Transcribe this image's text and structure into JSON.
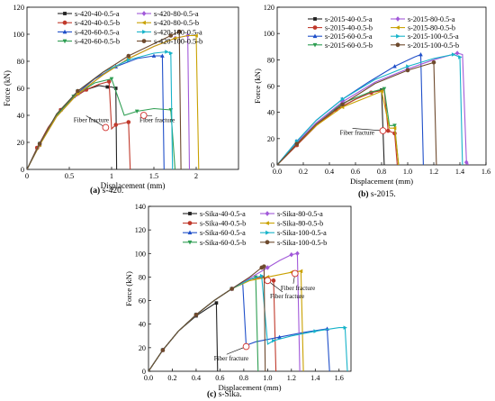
{
  "chart_data": [
    {
      "type": "line",
      "ylabel": "Force (kN)",
      "xlabel": "Displacement (mm)",
      "xlim": [
        0,
        2.5
      ],
      "ylim": [
        0,
        120
      ],
      "xticks": [
        0,
        0.5,
        1,
        1.5,
        2
      ],
      "yticks": [
        0,
        20,
        40,
        60,
        80,
        100,
        120
      ],
      "caption_letter": "(a)",
      "caption_text": " s-420.",
      "annotations": [
        {
          "text": "Fiber fracture",
          "x": 0.55,
          "y": 35,
          "arrow_x": 0.93,
          "arrow_y": 31
        },
        {
          "text": "Fiber fracture",
          "x": 1.33,
          "y": 35,
          "arrow_x": 1.38,
          "arrow_y": 40
        }
      ],
      "series": [
        {
          "name": "s-420-40-0.5-a",
          "color": "#222222",
          "marker": "square",
          "x": [
            0,
            0.12,
            0.25,
            0.4,
            0.55,
            0.7,
            0.85,
            0.95,
            1.0,
            1.05,
            1.06
          ],
          "y": [
            0,
            16,
            31,
            44,
            53,
            59,
            62,
            61,
            61,
            60,
            0
          ]
        },
        {
          "name": "s-420-40-0.5-b",
          "color": "#c0392b",
          "marker": "circle",
          "x": [
            0,
            0.12,
            0.25,
            0.4,
            0.55,
            0.7,
            0.85,
            0.97,
            1.0,
            1.05,
            1.2,
            1.22
          ],
          "y": [
            0,
            16,
            31,
            44,
            53,
            59,
            63,
            65,
            30,
            33,
            35,
            0
          ]
        },
        {
          "name": "s-420-60-0.5-a",
          "color": "#1f4fc9",
          "marker": "triangle",
          "x": [
            0,
            0.15,
            0.35,
            0.55,
            0.8,
            1.05,
            1.3,
            1.5,
            1.6,
            1.62
          ],
          "y": [
            0,
            19,
            40,
            54,
            67,
            76,
            82,
            84,
            84,
            0
          ]
        },
        {
          "name": "s-420-60-0.5-b",
          "color": "#2e9e52",
          "marker": "triangle-down",
          "x": [
            0,
            0.15,
            0.35,
            0.55,
            0.8,
            1.0,
            1.15,
            1.3,
            1.5,
            1.7,
            1.75
          ],
          "y": [
            0,
            19,
            40,
            54,
            64,
            67,
            40,
            43,
            45,
            44,
            0
          ]
        },
        {
          "name": "s-420-80-0.5-a",
          "color": "#a259d9",
          "marker": "diamond",
          "x": [
            0,
            0.15,
            0.35,
            0.6,
            0.9,
            1.2,
            1.5,
            1.75,
            1.9,
            1.92
          ],
          "y": [
            0,
            18,
            39,
            56,
            70,
            82,
            91,
            97,
            99,
            0
          ]
        },
        {
          "name": "s-420-80-0.5-b",
          "color": "#c9a100",
          "marker": "triangle-left",
          "x": [
            0,
            0.15,
            0.35,
            0.6,
            0.9,
            1.2,
            1.5,
            1.75,
            1.9,
            2.0,
            2.03
          ],
          "y": [
            0,
            18,
            39,
            56,
            70,
            82,
            91,
            97,
            99,
            99,
            0
          ]
        },
        {
          "name": "s-420-100-0.5-a",
          "color": "#17b3c9",
          "marker": "triangle-right",
          "x": [
            0,
            0.15,
            0.35,
            0.6,
            0.9,
            1.2,
            1.5,
            1.65,
            1.7,
            1.72
          ],
          "y": [
            0,
            19,
            41,
            58,
            72,
            81,
            86,
            87,
            86,
            0
          ]
        },
        {
          "name": "s-420-100-0.5-b",
          "color": "#6e4a2e",
          "marker": "hexagon",
          "x": [
            0,
            0.15,
            0.35,
            0.6,
            0.9,
            1.2,
            1.5,
            1.7,
            1.8,
            1.82
          ],
          "y": [
            0,
            19,
            41,
            58,
            72,
            84,
            93,
            99,
            102,
            0
          ]
        }
      ]
    },
    {
      "type": "line",
      "ylabel": "Force (kN)",
      "xlabel": "Displacement (mm)",
      "xlim": [
        0,
        1.6
      ],
      "ylim": [
        0,
        120
      ],
      "xticks": [
        0.0,
        0.2,
        0.4,
        0.6,
        0.8,
        1.0,
        1.2,
        1.4,
        1.6
      ],
      "yticks": [
        0,
        20,
        40,
        60,
        80,
        100,
        120
      ],
      "caption_letter": "(b)",
      "caption_text": " s-2015.",
      "annotations": [
        {
          "text": "Fiber fracture",
          "x": 0.48,
          "y": 23,
          "arrow_x": 0.81,
          "arrow_y": 26
        }
      ],
      "series": [
        {
          "name": "s-2015-40-0.5-a",
          "color": "#222222",
          "marker": "square",
          "x": [
            0,
            0.15,
            0.3,
            0.45,
            0.6,
            0.72,
            0.8,
            0.82
          ],
          "y": [
            0,
            15,
            30,
            42,
            50,
            55,
            57,
            0
          ]
        },
        {
          "name": "s-2015-40-0.5-b",
          "color": "#c0392b",
          "marker": "circle",
          "x": [
            0,
            0.15,
            0.3,
            0.45,
            0.6,
            0.72,
            0.82,
            0.85,
            0.9,
            0.92
          ],
          "y": [
            0,
            15,
            30,
            42,
            50,
            55,
            57,
            26,
            24,
            0
          ]
        },
        {
          "name": "s-2015-60-0.5-a",
          "color": "#1f4fc9",
          "marker": "triangle",
          "x": [
            0,
            0.15,
            0.3,
            0.5,
            0.7,
            0.9,
            1.05,
            1.1,
            1.12
          ],
          "y": [
            0,
            18,
            34,
            50,
            63,
            75,
            82,
            84,
            0
          ]
        },
        {
          "name": "s-2015-60-0.5-b",
          "color": "#2e9e52",
          "marker": "triangle-down",
          "x": [
            0,
            0.15,
            0.3,
            0.5,
            0.7,
            0.82,
            0.86,
            0.9,
            0.93
          ],
          "y": [
            0,
            17,
            32,
            47,
            55,
            58,
            30,
            30,
            0
          ]
        },
        {
          "name": "s-2015-80-0.5-a",
          "color": "#a259d9",
          "marker": "diamond",
          "x": [
            0,
            0.15,
            0.3,
            0.5,
            0.75,
            1.0,
            1.2,
            1.38,
            1.42,
            1.45,
            1.47
          ],
          "y": [
            0,
            17,
            32,
            48,
            63,
            73,
            80,
            85,
            84,
            2,
            0
          ]
        },
        {
          "name": "s-2015-80-0.5-b",
          "color": "#c9a100",
          "marker": "triangle-left",
          "x": [
            0,
            0.15,
            0.3,
            0.5,
            0.7,
            0.8,
            0.86,
            0.9,
            0.93
          ],
          "y": [
            0,
            16,
            30,
            44,
            52,
            56,
            28,
            28,
            0
          ]
        },
        {
          "name": "s-2015-100-0.5-a",
          "color": "#17b3c9",
          "marker": "triangle-right",
          "x": [
            0,
            0.15,
            0.3,
            0.5,
            0.75,
            1.0,
            1.2,
            1.35,
            1.4,
            1.42
          ],
          "y": [
            0,
            18,
            34,
            50,
            65,
            75,
            81,
            84,
            82,
            0
          ]
        },
        {
          "name": "s-2015-100-0.5-b",
          "color": "#6e4a2e",
          "marker": "hexagon",
          "x": [
            0,
            0.15,
            0.3,
            0.5,
            0.75,
            1.0,
            1.2,
            1.22
          ],
          "y": [
            0,
            16,
            31,
            46,
            62,
            72,
            78,
            0
          ]
        }
      ]
    },
    {
      "type": "line",
      "ylabel": "Force (kN)",
      "xlabel": "Displacement (mm)",
      "xlim": [
        0,
        1.7
      ],
      "ylim": [
        0,
        140
      ],
      "xticks": [
        0.0,
        0.2,
        0.4,
        0.6,
        0.8,
        1.0,
        1.2,
        1.4,
        1.6
      ],
      "yticks": [
        0,
        20,
        40,
        60,
        80,
        100,
        120,
        140
      ],
      "caption_letter": "(c)",
      "caption_text": " s-Sika.",
      "annotations": [
        {
          "text": "Fiber fracture",
          "x": 0.55,
          "y": 9,
          "arrow_x": 0.82,
          "arrow_y": 21
        },
        {
          "text": "Fiber fracture",
          "x": 1.02,
          "y": 62,
          "arrow_x": 1.0,
          "arrow_y": 77
        },
        {
          "text": "Fiber fracture",
          "x": 1.11,
          "y": 69,
          "arrow_x": 1.23,
          "arrow_y": 83
        }
      ],
      "series": [
        {
          "name": "s-Sika-40-0.5-a",
          "color": "#222222",
          "marker": "square",
          "x": [
            0,
            0.12,
            0.25,
            0.4,
            0.55,
            0.57,
            0.58
          ],
          "y": [
            0,
            18,
            34,
            47,
            57,
            58,
            0
          ]
        },
        {
          "name": "s-Sika-40-0.5-b",
          "color": "#c0392b",
          "marker": "circle",
          "x": [
            0,
            0.12,
            0.25,
            0.4,
            0.55,
            0.7,
            0.85,
            0.95,
            1.0,
            1.05,
            1.07
          ],
          "y": [
            0,
            18,
            34,
            48,
            60,
            70,
            78,
            80,
            78,
            77,
            0
          ]
        },
        {
          "name": "s-Sika-60-0.5-a",
          "color": "#1f4fc9",
          "marker": "triangle",
          "x": [
            0,
            0.12,
            0.25,
            0.4,
            0.55,
            0.7,
            0.79,
            0.82,
            0.9,
            1.1,
            1.3,
            1.5,
            1.52
          ],
          "y": [
            0,
            18,
            34,
            48,
            60,
            70,
            76,
            22,
            25,
            29,
            33,
            36,
            0
          ]
        },
        {
          "name": "s-Sika-60-0.5-b",
          "color": "#2e9e52",
          "marker": "triangle-down",
          "x": [
            0,
            0.12,
            0.25,
            0.4,
            0.55,
            0.7,
            0.85,
            0.9,
            0.92
          ],
          "y": [
            0,
            18,
            34,
            48,
            60,
            70,
            78,
            80,
            0
          ]
        },
        {
          "name": "s-Sika-80-0.5-a",
          "color": "#a259d9",
          "marker": "diamond",
          "x": [
            0,
            0.12,
            0.25,
            0.4,
            0.55,
            0.7,
            0.85,
            1.0,
            1.1,
            1.2,
            1.25,
            1.27
          ],
          "y": [
            0,
            18,
            34,
            48,
            60,
            70,
            79,
            88,
            94,
            99,
            100,
            0
          ]
        },
        {
          "name": "s-Sika-80-0.5-b",
          "color": "#c9a100",
          "marker": "triangle-left",
          "x": [
            0,
            0.12,
            0.25,
            0.4,
            0.55,
            0.7,
            0.85,
            1.0,
            1.1,
            1.2,
            1.28,
            1.3
          ],
          "y": [
            0,
            18,
            34,
            48,
            60,
            70,
            77,
            80,
            82,
            84,
            85,
            0
          ]
        },
        {
          "name": "s-Sika-100-0.5-a",
          "color": "#17b3c9",
          "marker": "triangle-right",
          "x": [
            0,
            0.12,
            0.25,
            0.4,
            0.55,
            0.7,
            0.85,
            0.95,
            1.0,
            1.05,
            1.2,
            1.4,
            1.6,
            1.65,
            1.67
          ],
          "y": [
            0,
            18,
            34,
            48,
            60,
            70,
            78,
            81,
            23,
            26,
            30,
            34,
            37,
            37,
            0
          ]
        },
        {
          "name": "s-Sika-100-0.5-b",
          "color": "#6e4a2e",
          "marker": "hexagon",
          "x": [
            0,
            0.12,
            0.25,
            0.4,
            0.55,
            0.7,
            0.85,
            0.95,
            0.97,
            0.98
          ],
          "y": [
            0,
            18,
            34,
            48,
            60,
            70,
            80,
            88,
            89,
            0
          ]
        }
      ]
    }
  ]
}
